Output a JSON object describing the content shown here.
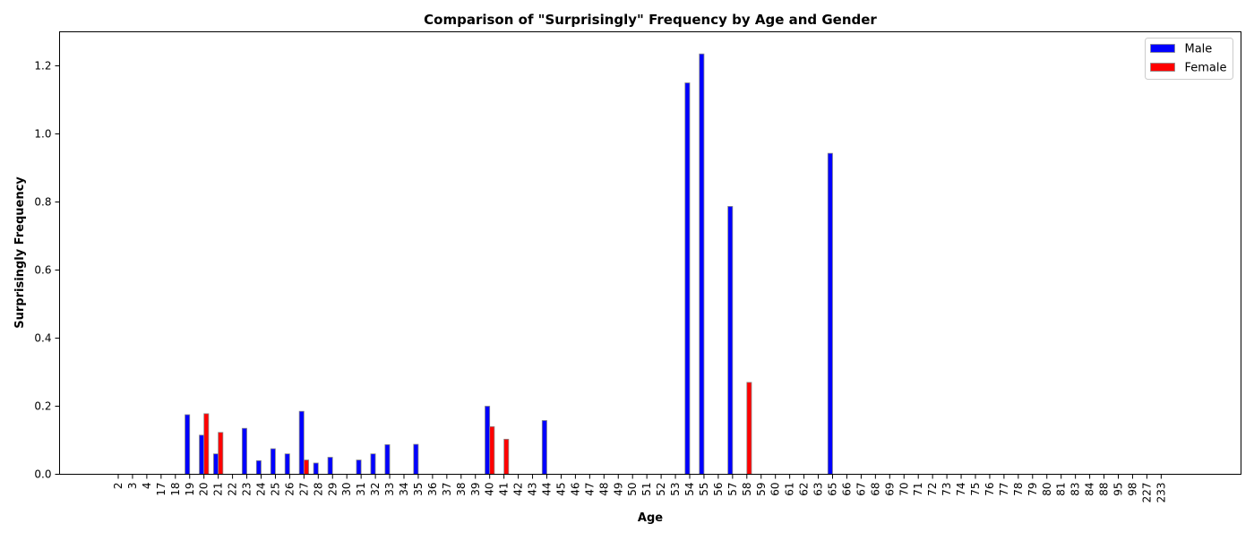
{
  "chart_data": {
    "type": "bar",
    "title": "Comparison of \"Surprisingly\" Frequency by Age and Gender",
    "xlabel": "Age",
    "ylabel": "Surprisingly Frequency",
    "ylim": [
      0,
      1.3
    ],
    "yticks": [
      "0.0",
      "0.2",
      "0.4",
      "0.6",
      "0.8",
      "1.0",
      "1.2"
    ],
    "grid": false,
    "legend_position": "top-right",
    "categories": [
      "2",
      "3",
      "4",
      "17",
      "18",
      "19",
      "20",
      "21",
      "22",
      "23",
      "24",
      "25",
      "26",
      "27",
      "28",
      "29",
      "30",
      "31",
      "32",
      "33",
      "34",
      "35",
      "36",
      "37",
      "38",
      "39",
      "40",
      "41",
      "42",
      "43",
      "44",
      "45",
      "46",
      "47",
      "48",
      "49",
      "50",
      "51",
      "52",
      "53",
      "54",
      "55",
      "56",
      "57",
      "58",
      "59",
      "60",
      "61",
      "62",
      "63",
      "65",
      "66",
      "67",
      "68",
      "69",
      "70",
      "71",
      "72",
      "73",
      "74",
      "75",
      "76",
      "77",
      "78",
      "79",
      "80",
      "81",
      "83",
      "84",
      "88",
      "95",
      "98",
      "227",
      "233"
    ],
    "series": [
      {
        "name": "Male",
        "color": "#0000ff",
        "values": [
          0,
          0,
          0,
          0,
          0,
          0.175,
          0.115,
          0.06,
          0,
          0.135,
          0.04,
          0.075,
          0.06,
          0.185,
          0.033,
          0.05,
          0,
          0.042,
          0.06,
          0.087,
          0,
          0.088,
          0,
          0,
          0,
          0,
          0.2,
          0,
          0,
          0,
          0.158,
          0,
          0,
          0,
          0,
          0,
          0,
          0,
          0,
          0,
          1.15,
          1.235,
          0,
          0.787,
          0,
          0,
          0,
          0,
          0,
          0,
          0.943,
          0,
          0,
          0,
          0,
          0,
          0,
          0,
          0,
          0,
          0,
          0,
          0,
          0,
          0,
          0,
          0,
          0,
          0,
          0,
          0,
          0,
          0,
          0
        ]
      },
      {
        "name": "Female",
        "color": "#ff0000",
        "values": [
          0,
          0,
          0,
          0,
          0,
          0,
          0.178,
          0.123,
          0,
          0,
          0,
          0,
          0,
          0.042,
          0,
          0,
          0,
          0,
          0,
          0,
          0,
          0,
          0,
          0,
          0,
          0,
          0.14,
          0.103,
          0,
          0,
          0,
          0,
          0,
          0,
          0,
          0,
          0,
          0,
          0,
          0,
          0,
          0,
          0,
          0,
          0.27,
          0,
          0,
          0,
          0,
          0,
          0,
          0,
          0,
          0,
          0,
          0,
          0,
          0,
          0,
          0,
          0,
          0,
          0,
          0,
          0,
          0,
          0,
          0,
          0,
          0,
          0,
          0,
          0,
          0
        ]
      }
    ]
  }
}
